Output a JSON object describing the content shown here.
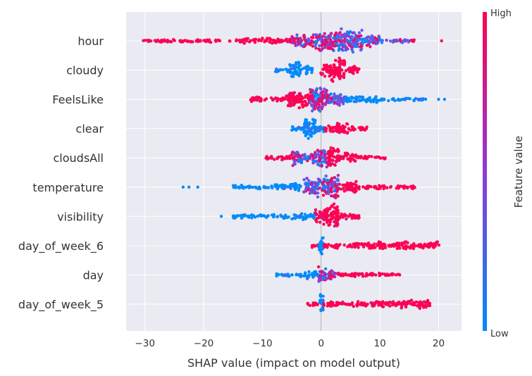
{
  "chart_data": {
    "type": "scatter",
    "subtype": "shap-beeswarm",
    "xlabel": "SHAP value (impact on model output)",
    "xlim": [
      -33.2,
      23.9
    ],
    "xticks": [
      -30,
      -20,
      -10,
      0,
      10,
      20
    ],
    "xtick_labels": [
      "−30",
      "−20",
      "−10",
      "0",
      "10",
      "20"
    ],
    "grid": true,
    "colorbar": {
      "title": "Feature value",
      "high_label": "High",
      "low_label": "Low",
      "low_color": "#008bfb",
      "high_color": "#ff0052"
    },
    "features": [
      {
        "name": "hour",
        "xmin": -31,
        "xmax": 20.5,
        "outliers": [
          20.5
        ],
        "segments": [
          {
            "from": -31,
            "to": -14,
            "color": "high",
            "h": 2.5
          },
          {
            "from": -14,
            "to": -5,
            "color": "high",
            "h": 4
          },
          {
            "from": -5,
            "to": -1,
            "color": "mix",
            "h": 9
          },
          {
            "from": -1,
            "to": 3,
            "color": "mix",
            "h": 15
          },
          {
            "from": 3,
            "to": 7,
            "color": "mixlow",
            "h": 18
          },
          {
            "from": 7,
            "to": 10,
            "color": "mixlow",
            "h": 9
          },
          {
            "from": 10,
            "to": 15,
            "color": "mixlow",
            "h": 3
          },
          {
            "from": 15,
            "to": 16,
            "color": "high",
            "h": 2
          }
        ]
      },
      {
        "name": "cloudy",
        "xmin": -7.8,
        "xmax": 6.5,
        "outliers": [],
        "segments": [
          {
            "from": -7.8,
            "to": -5.5,
            "color": "low",
            "h": 4
          },
          {
            "from": -5.5,
            "to": -3.5,
            "color": "low",
            "h": 12
          },
          {
            "from": -3.5,
            "to": -1.5,
            "color": "low",
            "h": 6
          },
          {
            "from": -0.1,
            "to": 1.5,
            "color": "high",
            "h": 10
          },
          {
            "from": 1.5,
            "to": 4,
            "color": "high",
            "h": 18
          },
          {
            "from": 4,
            "to": 6.5,
            "color": "high",
            "h": 6
          }
        ]
      },
      {
        "name": "FeelsLike",
        "xmin": -12,
        "xmax": 21,
        "outliers": [
          20,
          21
        ],
        "segments": [
          {
            "from": -12,
            "to": -6,
            "color": "high",
            "h": 4
          },
          {
            "from": -6,
            "to": -2,
            "color": "high",
            "h": 13
          },
          {
            "from": -2,
            "to": 1,
            "color": "mix",
            "h": 18
          },
          {
            "from": 1,
            "to": 4,
            "color": "mixlow",
            "h": 11
          },
          {
            "from": 4,
            "to": 10,
            "color": "low",
            "h": 5
          },
          {
            "from": 10,
            "to": 18,
            "color": "low",
            "h": 2.5
          }
        ]
      },
      {
        "name": "clear",
        "xmin": -5,
        "xmax": 7.8,
        "outliers": [],
        "segments": [
          {
            "from": -5,
            "to": -3,
            "color": "low",
            "h": 5
          },
          {
            "from": -3,
            "to": -1,
            "color": "low",
            "h": 16
          },
          {
            "from": -1,
            "to": 0.5,
            "color": "low",
            "h": 7
          },
          {
            "from": 0.5,
            "to": 2.5,
            "color": "high",
            "h": 5
          },
          {
            "from": 2.5,
            "to": 4.5,
            "color": "high",
            "h": 10
          },
          {
            "from": 4.5,
            "to": 7.8,
            "color": "high",
            "h": 4
          }
        ]
      },
      {
        "name": "cloudsAll",
        "xmin": -9.5,
        "xmax": 11,
        "outliers": [],
        "segments": [
          {
            "from": -9.5,
            "to": -5,
            "color": "high",
            "h": 4
          },
          {
            "from": -5,
            "to": -1,
            "color": "mix",
            "h": 11
          },
          {
            "from": -1,
            "to": 1,
            "color": "mixlow",
            "h": 14
          },
          {
            "from": 1,
            "to": 3,
            "color": "high",
            "h": 15
          },
          {
            "from": 3,
            "to": 6,
            "color": "high",
            "h": 7
          },
          {
            "from": 6,
            "to": 11,
            "color": "high",
            "h": 3
          }
        ]
      },
      {
        "name": "temperature",
        "xmin": -24,
        "xmax": 16,
        "outliers": [
          -23.5,
          -22.5,
          -21
        ],
        "segments": [
          {
            "from": -15,
            "to": -8,
            "color": "low",
            "h": 3
          },
          {
            "from": -8,
            "to": -3,
            "color": "low",
            "h": 6
          },
          {
            "from": -3,
            "to": 0,
            "color": "mixlow",
            "h": 15
          },
          {
            "from": 0,
            "to": 3,
            "color": "mix",
            "h": 18
          },
          {
            "from": 3,
            "to": 6,
            "color": "high",
            "h": 9
          },
          {
            "from": 6,
            "to": 16,
            "color": "high",
            "h": 3
          }
        ]
      },
      {
        "name": "visibility",
        "xmin": -17,
        "xmax": 6.5,
        "outliers": [
          -17
        ],
        "segments": [
          {
            "from": -15,
            "to": -5,
            "color": "low",
            "h": 3
          },
          {
            "from": -5,
            "to": -1,
            "color": "low",
            "h": 5
          },
          {
            "from": -1,
            "to": 1,
            "color": "high",
            "h": 12
          },
          {
            "from": 1,
            "to": 3,
            "color": "high",
            "h": 18
          },
          {
            "from": 3,
            "to": 6.5,
            "color": "high",
            "h": 5
          }
        ]
      },
      {
        "name": "day_of_week_6",
        "xmin": -1.8,
        "xmax": 20.2,
        "outliers": [],
        "segments": [
          {
            "from": -1.8,
            "to": -0.2,
            "color": "high",
            "h": 3
          },
          {
            "from": -0.4,
            "to": 0.4,
            "color": "low",
            "h": 16
          },
          {
            "from": 0.4,
            "to": 8,
            "color": "high",
            "h": 4
          },
          {
            "from": 8,
            "to": 20.2,
            "color": "high",
            "h": 6
          }
        ]
      },
      {
        "name": "day",
        "xmin": -7.8,
        "xmax": 13.5,
        "outliers": [],
        "segments": [
          {
            "from": -7.8,
            "to": -3,
            "color": "low",
            "h": 3
          },
          {
            "from": -3,
            "to": -0.5,
            "color": "low",
            "h": 6
          },
          {
            "from": -0.5,
            "to": 1,
            "color": "mix",
            "h": 14
          },
          {
            "from": 1,
            "to": 3,
            "color": "mix",
            "h": 7
          },
          {
            "from": 3,
            "to": 10,
            "color": "high",
            "h": 4
          },
          {
            "from": 10,
            "to": 13.5,
            "color": "high",
            "h": 3
          }
        ]
      },
      {
        "name": "day_of_week_5",
        "xmin": -2.3,
        "xmax": 18.8,
        "outliers": [],
        "segments": [
          {
            "from": -2.3,
            "to": -0.2,
            "color": "high",
            "h": 3
          },
          {
            "from": -0.4,
            "to": 0.4,
            "color": "low",
            "h": 16
          },
          {
            "from": 0.4,
            "to": 7,
            "color": "high",
            "h": 4
          },
          {
            "from": 7,
            "to": 18.8,
            "color": "high",
            "h": 6
          }
        ]
      }
    ]
  }
}
